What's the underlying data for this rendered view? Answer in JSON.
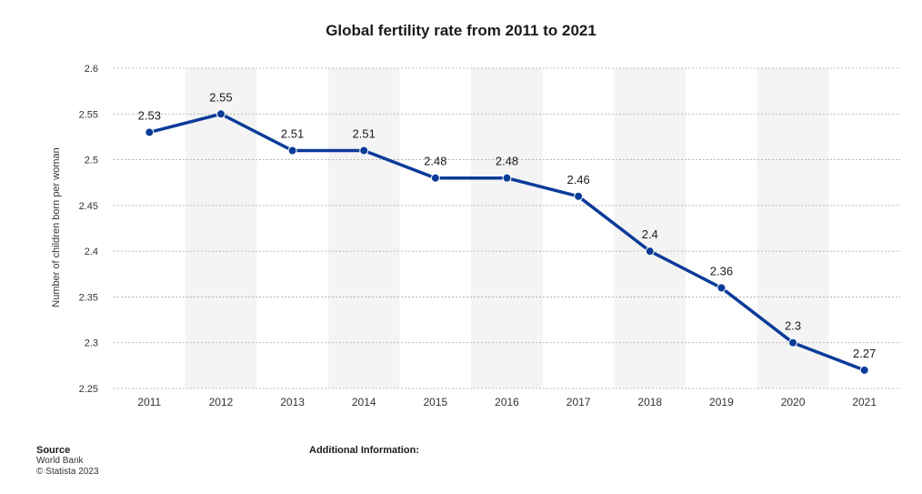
{
  "title": "Global fertility rate from 2011 to 2021",
  "footer": {
    "source_label": "Source",
    "source_value": "World Bank",
    "copyright": "© Statista 2023",
    "additional_info": "Additional Information:"
  },
  "chart_data": {
    "type": "line",
    "title": "Global fertility rate from 2011 to 2021",
    "xlabel": "",
    "ylabel": "Number of children born per woman",
    "x": [
      "2011",
      "2012",
      "2013",
      "2014",
      "2015",
      "2016",
      "2017",
      "2018",
      "2019",
      "2020",
      "2021"
    ],
    "series": [
      {
        "values": [
          2.53,
          2.55,
          2.51,
          2.51,
          2.48,
          2.48,
          2.46,
          2.4,
          2.36,
          2.3,
          2.27
        ]
      }
    ],
    "data_labels": [
      "2.53",
      "2.55",
      "2.51",
      "2.51",
      "2.48",
      "2.48",
      "2.46",
      "2.4",
      "2.36",
      "2.3",
      "2.27"
    ],
    "ylim": [
      2.25,
      2.6
    ],
    "yticks": [
      "2.25",
      "2.3",
      "2.35",
      "2.4",
      "2.45",
      "2.5",
      "2.55",
      "2.6"
    ],
    "grid": true,
    "line_color": "#0b3b99",
    "band_color": "#f4f4f4"
  }
}
